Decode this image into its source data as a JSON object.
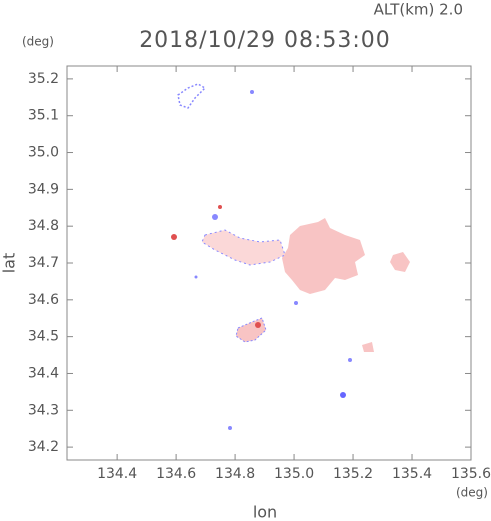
{
  "chart_data": {
    "type": "map",
    "header": "ALT(km) 2.0",
    "title": "2018/10/29 08:53:00",
    "y_unit": "(deg)",
    "x_unit": "(deg)",
    "x_label": "lon",
    "y_label": "lat",
    "xlim": [
      134.23,
      135.6
    ],
    "ylim": [
      34.165,
      35.235
    ],
    "xticks": [
      134.4,
      134.6,
      134.8,
      {
        "value": 135,
        "label": "135.0"
      },
      135.2,
      135.4,
      135.6
    ],
    "yticks": [
      34.2,
      34.3,
      34.4,
      34.5,
      34.6,
      34.7,
      34.8,
      34.9,
      {
        "value": 35,
        "label": "35.0"
      },
      35.1,
      35.2
    ]
  }
}
